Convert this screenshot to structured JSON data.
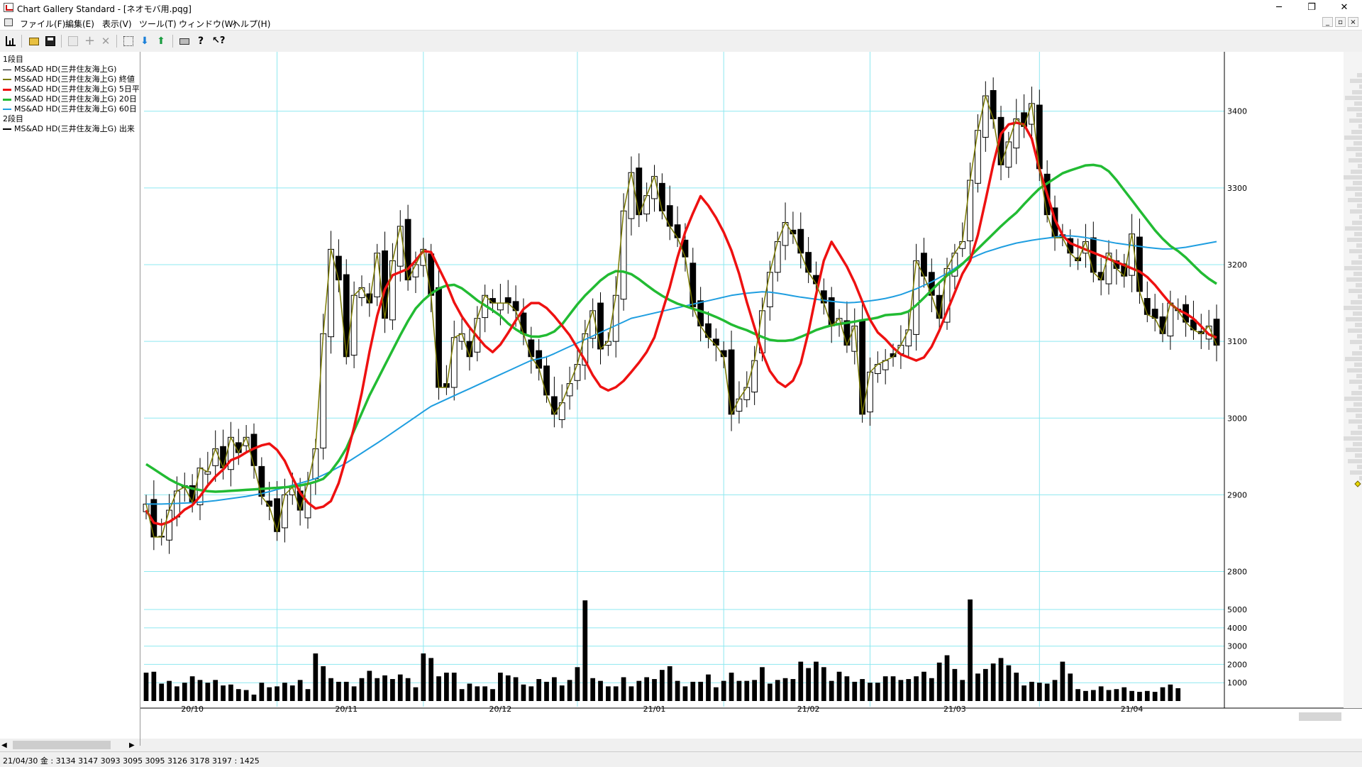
{
  "window": {
    "title": "Chart Gallery Standard - [ネオモバ用.pqg]",
    "minimize_glyph": "─",
    "maximize_glyph": "❐",
    "close_glyph": "✕"
  },
  "menu": {
    "items": [
      "ファイル(F)",
      "編集(E)",
      "表示(V)",
      "ツール(T)",
      "ウィンドウ(W)",
      "ヘルプ(H)"
    ],
    "mdi_min_glyph": "_",
    "mdi_restore_glyph": "▫",
    "mdi_close_glyph": "×"
  },
  "toolbar": {
    "buttons": [
      {
        "icon": "chart-new-icon",
        "enabled": true
      },
      {
        "icon": "folder-open-icon",
        "enabled": true
      },
      {
        "icon": "save-icon",
        "enabled": true
      },
      {
        "icon": "copy-icon",
        "enabled": false
      },
      {
        "icon": "plus-icon",
        "enabled": false
      },
      {
        "icon": "delete-x-icon",
        "enabled": false
      },
      {
        "icon": "import-icon",
        "enabled": true
      },
      {
        "icon": "download-icon",
        "enabled": true
      },
      {
        "icon": "upload-icon",
        "enabled": true
      },
      {
        "icon": "print-icon",
        "enabled": true
      },
      {
        "icon": "help-icon",
        "enabled": true
      },
      {
        "icon": "context-help-icon",
        "enabled": true
      }
    ]
  },
  "legend": {
    "panel1_label": "1段目",
    "panel2_label": "2段目",
    "items": [
      {
        "text": "MS&AD HD(三井住友海上G)",
        "color": "#000000"
      },
      {
        "text": "MS&AD HD(三井住友海上G) 終値",
        "color": "#7a7a00"
      },
      {
        "text": "MS&AD HD(三井住友海上G) 5日平",
        "color": "#ee1111"
      },
      {
        "text": "MS&AD HD(三井住友海上G) 20日",
        "color": "#22bb33"
      },
      {
        "text": "MS&AD HD(三井住友海上G) 60日",
        "color": "#1f9ee0"
      }
    ],
    "volume_item": {
      "text": "MS&AD HD(三井住友海上G) 出来",
      "color": "#000000"
    }
  },
  "status": {
    "text": "21/04/30 金 : 3134 3147 3093 3095  3095 3126 3178 3197 : 1425"
  },
  "colors": {
    "grid": "#8ee8f0",
    "up_body": "#ffffff",
    "down_body": "#000000",
    "candle_edge": "#000000",
    "close_line": "#7a7a00",
    "ma5": "#ee1111",
    "ma20": "#22bb33",
    "ma60": "#1f9ee0",
    "volume": "#000000"
  },
  "chart_data": [
    {
      "type": "candlestick",
      "ylim": [
        2770,
        3470
      ],
      "y_ticks": [
        2800,
        2900,
        3000,
        3100,
        3200,
        3300,
        3400
      ],
      "x_labels": [
        "20/10",
        "20/11",
        "20/12",
        "21/01",
        "21/02",
        "21/03",
        "21/04"
      ],
      "x_label_bar_index": [
        6,
        26,
        46,
        66,
        86,
        105,
        128
      ],
      "month_grid_bar_index": [
        17,
        36,
        56,
        75,
        94,
        116
      ],
      "series": [
        {
          "name": "MS&AD HD(三井住友海上G)",
          "kind": "ohlc"
        },
        {
          "name": "終値",
          "kind": "line"
        },
        {
          "name": "5日",
          "kind": "line"
        },
        {
          "name": "20日",
          "kind": "line"
        },
        {
          "name": "60日",
          "kind": "line"
        }
      ],
      "close": [
        2888,
        2845,
        2845,
        2880,
        2905,
        2910,
        2890,
        2935,
        2930,
        2960,
        2935,
        2975,
        2955,
        2975,
        2938,
        2898,
        2885,
        2852,
        2900,
        2910,
        2880,
        2915,
        2960,
        3110,
        3220,
        3180,
        3080,
        3160,
        3170,
        3150,
        3215,
        3130,
        3205,
        3250,
        3180,
        3200,
        3220,
        3160,
        3040,
        3040,
        3105,
        3110,
        3080,
        3130,
        3160,
        3150,
        3150,
        3150,
        3140,
        3110,
        3080,
        3065,
        3030,
        3005,
        3020,
        3045,
        3070,
        3110,
        3140,
        3090,
        3100,
        3160,
        3270,
        3320,
        3265,
        3290,
        3315,
        3270,
        3250,
        3235,
        3210,
        3145,
        3120,
        3105,
        3095,
        3080,
        3005,
        3025,
        3040,
        3075,
        3140,
        3190,
        3230,
        3255,
        3240,
        3215,
        3190,
        3175,
        3150,
        3120,
        3130,
        3095,
        3120,
        3005,
        3060,
        3070,
        3075,
        3080,
        3095,
        3115,
        3205,
        3185,
        3160,
        3130,
        3195,
        3215,
        3230,
        3310,
        3375,
        3420,
        3390,
        3330,
        3360,
        3390,
        3380,
        3410,
        3325,
        3265,
        3235,
        3235,
        3215,
        3205,
        3230,
        3190,
        3180,
        3215,
        3195,
        3185,
        3240,
        3165,
        3135,
        3130,
        3110,
        3150,
        3140,
        3125,
        3115,
        3110,
        3120,
        3095
      ],
      "ma5": [
        2880,
        2860,
        2862,
        2868,
        2880,
        2887,
        2902,
        2920,
        2930,
        2945,
        2950,
        2958,
        2963,
        2968,
        2958,
        2940,
        2910,
        2892,
        2882,
        2885,
        2895,
        2935,
        2980,
        3035,
        3100,
        3155,
        3185,
        3190,
        3195,
        3210,
        3225,
        3200,
        3175,
        3145,
        3125,
        3110,
        3095,
        3085,
        3100,
        3120,
        3140,
        3150,
        3150,
        3140,
        3125,
        3110,
        3090,
        3070,
        3045,
        3035,
        3040,
        3050,
        3065,
        3080,
        3100,
        3140,
        3180,
        3230,
        3260,
        3290,
        3275,
        3255,
        3230,
        3195,
        3150,
        3110,
        3070,
        3050,
        3040,
        3050,
        3080,
        3140,
        3200,
        3230,
        3210,
        3190,
        3160,
        3130,
        3110,
        3100,
        3085,
        3080,
        3075,
        3080,
        3100,
        3130,
        3160,
        3190,
        3210,
        3260,
        3320,
        3370,
        3385,
        3385,
        3380,
        3330,
        3290,
        3250,
        3230,
        3225,
        3220,
        3215,
        3210,
        3205,
        3200,
        3195,
        3190,
        3180,
        3165,
        3150,
        3140,
        3135,
        3125,
        3110,
        3105
      ],
      "ma20": [
        2940,
        2930,
        2920,
        2912,
        2908,
        2905,
        2904,
        2905,
        2906,
        2907,
        2908,
        2909,
        2910,
        2912,
        2915,
        2920,
        2935,
        2960,
        2995,
        3030,
        3060,
        3090,
        3120,
        3145,
        3160,
        3170,
        3175,
        3168,
        3155,
        3145,
        3135,
        3120,
        3110,
        3105,
        3108,
        3115,
        3135,
        3155,
        3170,
        3185,
        3192,
        3190,
        3180,
        3168,
        3158,
        3150,
        3145,
        3140,
        3135,
        3128,
        3120,
        3115,
        3108,
        3102,
        3100,
        3102,
        3108,
        3115,
        3120,
        3123,
        3125,
        3128,
        3130,
        3135,
        3135,
        3140,
        3155,
        3170,
        3185,
        3195,
        3210,
        3225,
        3240,
        3255,
        3268,
        3285,
        3300,
        3310,
        3320,
        3325,
        3330,
        3330,
        3320,
        3300,
        3280,
        3260,
        3240,
        3225,
        3215,
        3200,
        3185,
        3175
      ],
      "ma60": [
        2888,
        2888,
        2889,
        2890,
        2892,
        2895,
        2898,
        2902,
        2908,
        2914,
        2920,
        2930,
        2942,
        2956,
        2970,
        2985,
        3000,
        3015,
        3025,
        3035,
        3045,
        3055,
        3065,
        3075,
        3080,
        3090,
        3100,
        3110,
        3120,
        3130,
        3135,
        3140,
        3145,
        3150,
        3155,
        3160,
        3163,
        3165,
        3162,
        3158,
        3155,
        3152,
        3150,
        3152,
        3155,
        3160,
        3168,
        3178,
        3190,
        3205,
        3215,
        3222,
        3228,
        3232,
        3235,
        3238,
        3236,
        3232,
        3228,
        3225,
        3222,
        3220,
        3222,
        3226,
        3230
      ]
    },
    {
      "type": "bar",
      "name": "出来",
      "ylim": [
        0,
        5700
      ],
      "y_ticks": [
        1000,
        2000,
        3000,
        4000,
        5000
      ],
      "values": [
        1550,
        1600,
        950,
        1100,
        800,
        1000,
        1350,
        1150,
        1000,
        1150,
        850,
        900,
        650,
        600,
        350,
        1000,
        750,
        800,
        1000,
        850,
        1150,
        650,
        2600,
        1900,
        1250,
        1050,
        1050,
        800,
        1250,
        1650,
        1250,
        1400,
        1200,
        1450,
        1250,
        750,
        2600,
        2350,
        1350,
        1550,
        1550,
        650,
        950,
        800,
        800,
        650,
        1550,
        1400,
        1300,
        900,
        800,
        1200,
        1050,
        1300,
        850,
        1150,
        1850,
        1500,
        1250,
        1100,
        800,
        800,
        1300,
        800,
        1100,
        1300,
        1200,
        1700,
        1900,
        1100,
        800,
        1050,
        1050,
        1450,
        750,
        1100,
        1550,
        1100,
        1100,
        1150,
        1850,
        950,
        1150,
        1250,
        1200,
        2150,
        1800,
        2150,
        1850,
        1100,
        1600,
        1350,
        1050,
        1200,
        1000,
        1000,
        1350,
        1350,
        1150,
        1200,
        1350,
        1600,
        1250,
        2100,
        2500,
        1750,
        1150,
        1050,
        1500,
        1750,
        2050,
        2350,
        1950,
        1550,
        850,
        1050,
        1000,
        950,
        1150,
        2150,
        1500,
        650,
        550,
        600,
        800,
        600,
        650,
        750,
        550,
        500,
        550,
        500,
        750,
        900,
        700
      ],
      "special_spikes": [
        {
          "index": 57,
          "value": 5500
        },
        {
          "index": 107,
          "value": 5550
        }
      ]
    }
  ]
}
